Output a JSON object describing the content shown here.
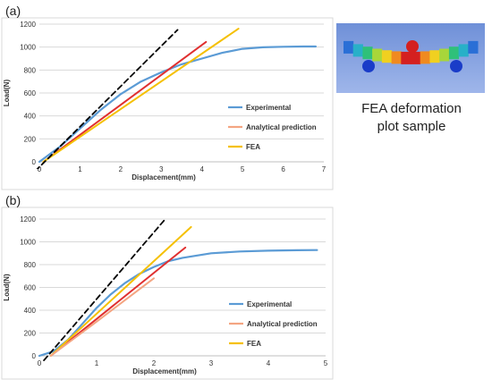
{
  "panel_labels": [
    "(a)",
    "(b)"
  ],
  "side_image": {
    "caption_line1": "FEA deformation",
    "caption_line2": "plot sample",
    "bar_colors": [
      "#2a6fd6",
      "#28b0c8",
      "#2fc07a",
      "#a8d63a",
      "#f0d020",
      "#f08a20",
      "#d42020"
    ],
    "support_color": "#1a3cc8",
    "loader_color": "#d42020"
  },
  "chart_data": [
    {
      "type": "line",
      "panel": "(a)",
      "xlabel": "Displacement(mm)",
      "ylabel": "Load(N)",
      "xlim": [
        0,
        7
      ],
      "ylim": [
        0,
        1200
      ],
      "xticks": [
        0,
        1,
        2,
        3,
        4,
        5,
        6,
        7
      ],
      "yticks": [
        0,
        200,
        400,
        600,
        800,
        1000,
        1200
      ],
      "grid": "horizontal",
      "legend_position": "lower-right",
      "legend": [
        "Experimental",
        "Analytical prediction",
        "FEA"
      ],
      "series": [
        {
          "name": "Experimental",
          "color": "#5b9bd5",
          "style": "solid",
          "x": [
            0,
            0.5,
            1,
            1.5,
            2,
            2.5,
            3,
            3.5,
            4,
            4.5,
            5,
            5.5,
            6,
            6.5,
            6.8
          ],
          "y": [
            0,
            130,
            290,
            450,
            590,
            700,
            780,
            850,
            900,
            950,
            985,
            998,
            1003,
            1005,
            1005
          ]
        },
        {
          "name": "Analytical prediction",
          "color": "#e03030",
          "style": "solid",
          "x": [
            0.1,
            4.1
          ],
          "y": [
            0,
            1045
          ]
        },
        {
          "name": "FEA",
          "color": "#f5c000",
          "style": "solid",
          "x": [
            0.1,
            4.9
          ],
          "y": [
            0,
            1160
          ]
        },
        {
          "name": "",
          "color": "#000000",
          "style": "dashed",
          "x": [
            -0.1,
            3.4
          ],
          "y": [
            -80,
            1150
          ]
        }
      ]
    },
    {
      "type": "line",
      "panel": "(b)",
      "xlabel": "Displacement(mm)",
      "ylabel": "Load(N)",
      "xlim": [
        0,
        5
      ],
      "ylim": [
        0,
        1200
      ],
      "xticks": [
        0,
        1,
        2,
        3,
        4,
        5
      ],
      "yticks": [
        0,
        200,
        400,
        600,
        800,
        1000,
        1200
      ],
      "grid": "horizontal",
      "legend_position": "lower-right",
      "legend": [
        "Experimental",
        "Analytical prediction",
        "FEA"
      ],
      "series": [
        {
          "name": "Experimental",
          "color": "#5b9bd5",
          "style": "solid",
          "x": [
            0,
            0.25,
            0.5,
            0.75,
            1,
            1.25,
            1.5,
            1.75,
            2,
            2.25,
            2.5,
            3,
            3.5,
            4,
            4.5,
            4.85
          ],
          "y": [
            0,
            40,
            140,
            280,
            420,
            540,
            640,
            720,
            780,
            830,
            860,
            900,
            915,
            922,
            926,
            928
          ]
        },
        {
          "name": "Analytical prediction",
          "color": "#e03030",
          "style": "solid",
          "x": [
            0.2,
            2.55
          ],
          "y": [
            0,
            950
          ]
        },
        {
          "name": "FEA",
          "color": "#f5c000",
          "style": "solid",
          "x": [
            0.2,
            2.65
          ],
          "y": [
            0,
            1130
          ]
        },
        {
          "name": "",
          "color": "#f4a582",
          "style": "solid",
          "x": [
            0.2,
            1.0,
            2.0
          ],
          "y": [
            0,
            300,
            680
          ]
        },
        {
          "name": "",
          "color": "#000000",
          "style": "dashed",
          "x": [
            0.08,
            2.2
          ],
          "y": [
            -40,
            1200
          ]
        }
      ]
    }
  ]
}
